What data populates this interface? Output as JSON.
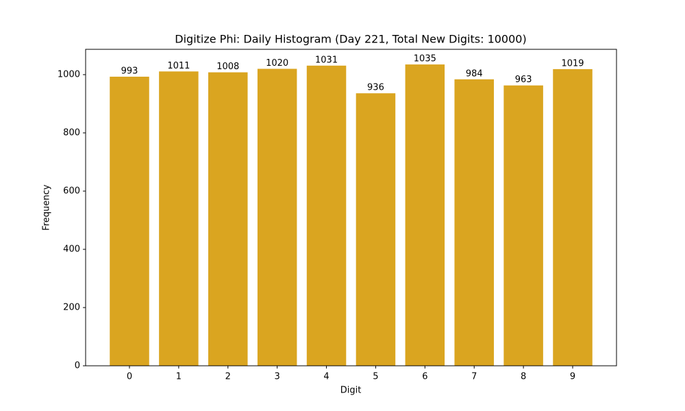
{
  "chart_data": {
    "type": "bar",
    "title": "Digitize Phi: Daily Histogram (Day 221, Total New Digits: 10000)",
    "x_label": "Digit",
    "y_label": "Frequency",
    "x": [
      0,
      1,
      2,
      3,
      4,
      5,
      6,
      7,
      8,
      9
    ],
    "values": [
      993,
      1011,
      1008,
      1020,
      1031,
      936,
      1035,
      984,
      963,
      1019
    ],
    "color": "#daa520",
    "xlim": [
      -0.89,
      9.89
    ],
    "xticks": [
      0,
      1,
      2,
      3,
      4,
      5,
      6,
      7,
      8,
      9
    ],
    "ylim": [
      0,
      1087
    ],
    "yticks": [
      0,
      200,
      400,
      600,
      800,
      1000
    ],
    "grid": false
  }
}
